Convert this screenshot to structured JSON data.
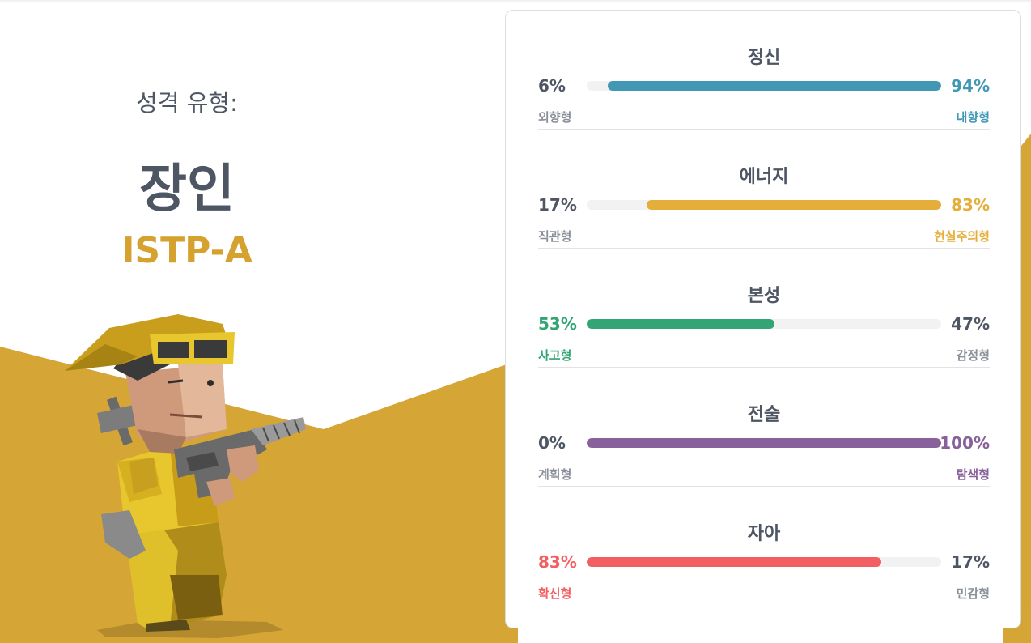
{
  "header": {
    "type_label": "성격 유형:",
    "type_name": "장인",
    "type_code": "ISTP-A"
  },
  "colors": {
    "accent_gold": "#d5a12f",
    "text_dark": "#4e5664",
    "text_muted": "#8a909a"
  },
  "traits": [
    {
      "title": "정신",
      "left_pct": "6%",
      "right_pct": "94%",
      "left_label": "외향형",
      "right_label": "내향형",
      "dominant": "right",
      "value": 94,
      "color": "#4298b4"
    },
    {
      "title": "에너지",
      "left_pct": "17%",
      "right_pct": "83%",
      "left_label": "직관형",
      "right_label": "현실주의형",
      "dominant": "right",
      "value": 83,
      "color": "#e4ae3a"
    },
    {
      "title": "본성",
      "left_pct": "53%",
      "right_pct": "47%",
      "left_label": "사고형",
      "right_label": "감정형",
      "dominant": "left",
      "value": 53,
      "color": "#33a474"
    },
    {
      "title": "전술",
      "left_pct": "0%",
      "right_pct": "100%",
      "left_label": "계획형",
      "right_label": "탐색형",
      "dominant": "right",
      "value": 100,
      "color": "#88619a"
    },
    {
      "title": "자아",
      "left_pct": "83%",
      "right_pct": "17%",
      "left_label": "확신형",
      "right_label": "민감형",
      "dominant": "left",
      "value": 83,
      "color": "#f25e62"
    }
  ]
}
